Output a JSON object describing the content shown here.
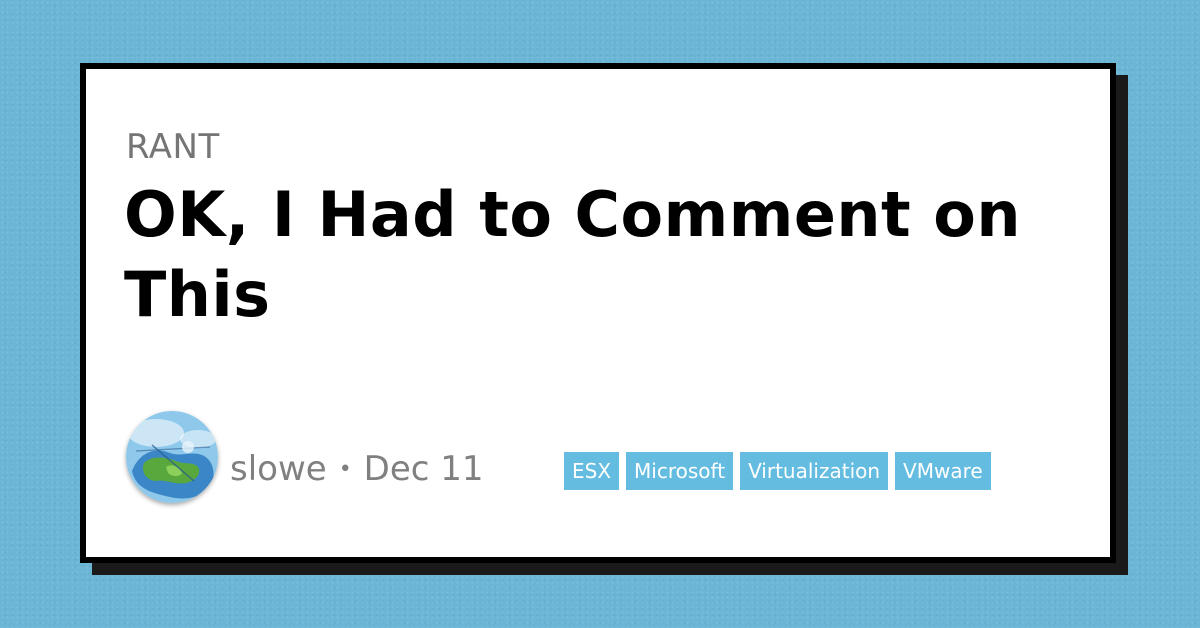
{
  "post": {
    "category": "RANT",
    "title": "OK, I Had to Comment on This",
    "author": "slowe",
    "separator": "•",
    "date": "Dec 11"
  },
  "tags": [
    "ESX",
    "Microsoft",
    "Virtualization",
    "VMware"
  ],
  "colors": {
    "background": "#6bb6d6",
    "card": "#ffffff",
    "border": "#000000",
    "tag": "#64bde0",
    "meta_text": "#808080"
  },
  "icons": {
    "avatar": "world-map-illustration"
  }
}
